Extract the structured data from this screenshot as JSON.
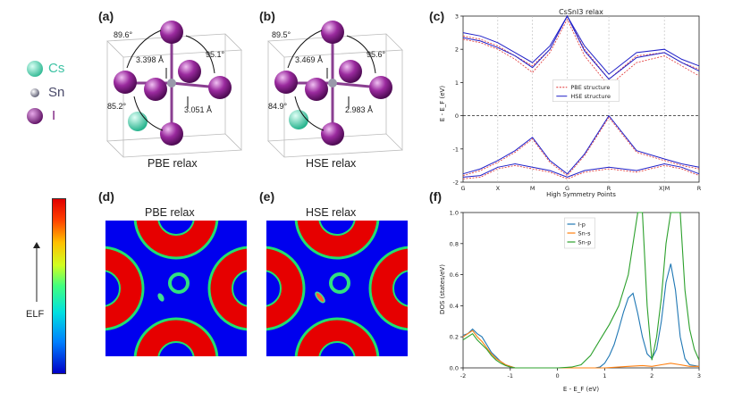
{
  "panel_labels": {
    "a": "(a)",
    "b": "(b)",
    "c": "(c)",
    "d": "(d)",
    "e": "(e)",
    "f": "(f)"
  },
  "atom_legend": [
    {
      "label": "Cs",
      "color": "#3fd7b5",
      "text_color": "#3ec3a4"
    },
    {
      "label": "Sn",
      "color": "#8f8fa0",
      "text_color": "#4a4a6a"
    },
    {
      "label": "I",
      "color": "#8a1f8c",
      "text_color": "#7b1e7e"
    }
  ],
  "structure_a": {
    "caption": "PBE relax",
    "angle_top": "89.6°",
    "angle_right": "95.1°",
    "angle_left": "85.2°",
    "bond_up": "3.398 Å",
    "bond_down": "3.051 Å"
  },
  "structure_b": {
    "caption": "HSE relax",
    "angle_top": "89.5°",
    "angle_right": "95.6°",
    "angle_left": "84.9°",
    "bond_up": "3.469 Å",
    "bond_down": "2.983 Å"
  },
  "elf_d": {
    "title": "PBE relax"
  },
  "elf_e": {
    "title": "HSE relax"
  },
  "elf_colorbar": {
    "label": "ELF",
    "colors": [
      "#0000c8",
      "#0080ff",
      "#00e0e0",
      "#40ff80",
      "#d0ff20",
      "#ffc000",
      "#ff4000",
      "#e00000"
    ]
  },
  "chart_data": [
    {
      "type": "line",
      "title": "CsSnI3 relax",
      "xlabel": "High Symmetry Points",
      "ylabel": "E - E_F (eV)",
      "ylim": [
        -2,
        3
      ],
      "x_ticks": [
        "G",
        "X",
        "M",
        "G",
        "R",
        "X|M",
        "R"
      ],
      "x_tick_positions": [
        0,
        1,
        2,
        3,
        4.2,
        5.8,
        6.8
      ],
      "y_ticks": [
        "-2",
        "-1",
        "0",
        "1",
        "2",
        "3"
      ],
      "legend_position": "center-right",
      "fermi_line": 0,
      "series": [
        {
          "name": "PBE structure",
          "color": "#e03030",
          "dashed": true,
          "bands": [
            {
              "x": [
                0,
                0.5,
                1,
                1.5,
                2,
                2.5,
                3,
                3.5,
                4.2,
                5,
                5.8,
                6.3,
                6.8
              ],
              "y": [
                2.3,
                2.2,
                2.0,
                1.7,
                1.3,
                1.9,
                2.9,
                1.8,
                0.9,
                1.6,
                1.8,
                1.5,
                1.2
              ]
            },
            {
              "x": [
                0,
                0.5,
                1,
                1.5,
                2,
                2.5,
                3,
                3.5,
                4.2,
                5,
                5.8,
                6.3,
                6.8
              ],
              "y": [
                2.4,
                2.3,
                2.1,
                1.8,
                1.5,
                2.0,
                3.0,
                2.0,
                1.1,
                1.8,
                1.9,
                1.6,
                1.4
              ]
            },
            {
              "x": [
                0,
                0.5,
                1,
                1.5,
                2,
                2.5,
                3,
                3.5,
                4.2,
                5,
                5.8,
                6.3,
                6.8
              ],
              "y": [
                -1.8,
                -1.65,
                -1.4,
                -1.1,
                -0.7,
                -1.4,
                -1.8,
                -1.2,
                -0.05,
                -1.1,
                -1.35,
                -1.5,
                -1.6
              ]
            },
            {
              "x": [
                0,
                0.5,
                1,
                1.5,
                2,
                2.5,
                3,
                3.5,
                4.2,
                5,
                5.8,
                6.3,
                6.8
              ],
              "y": [
                -1.9,
                -1.85,
                -1.6,
                -1.5,
                -1.6,
                -1.7,
                -1.9,
                -1.7,
                -1.6,
                -1.7,
                -1.5,
                -1.6,
                -1.8
              ]
            }
          ]
        },
        {
          "name": "HSE structure",
          "color": "#2020c8",
          "dashed": false,
          "bands": [
            {
              "x": [
                0,
                0.5,
                1,
                1.5,
                2,
                2.5,
                3,
                3.5,
                4.2,
                5,
                5.8,
                6.3,
                6.8
              ],
              "y": [
                2.35,
                2.25,
                2.05,
                1.8,
                1.45,
                2.0,
                3.0,
                1.95,
                1.1,
                1.75,
                1.9,
                1.6,
                1.35
              ]
            },
            {
              "x": [
                0,
                0.5,
                1,
                1.5,
                2,
                2.5,
                3,
                3.5,
                4.2,
                5,
                5.8,
                6.3,
                6.8
              ],
              "y": [
                2.5,
                2.4,
                2.2,
                1.9,
                1.6,
                2.1,
                3.0,
                2.1,
                1.25,
                1.9,
                2.0,
                1.7,
                1.5
              ]
            },
            {
              "x": [
                0,
                0.5,
                1,
                1.5,
                2,
                2.5,
                3,
                3.5,
                4.2,
                5,
                5.8,
                6.3,
                6.8
              ],
              "y": [
                -1.75,
                -1.6,
                -1.35,
                -1.05,
                -0.65,
                -1.35,
                -1.75,
                -1.15,
                0.0,
                -1.05,
                -1.3,
                -1.45,
                -1.55
              ]
            },
            {
              "x": [
                0,
                0.5,
                1,
                1.5,
                2,
                2.5,
                3,
                3.5,
                4.2,
                5,
                5.8,
                6.3,
                6.8
              ],
              "y": [
                -1.85,
                -1.8,
                -1.55,
                -1.45,
                -1.55,
                -1.65,
                -1.85,
                -1.65,
                -1.55,
                -1.65,
                -1.45,
                -1.55,
                -1.75
              ]
            }
          ]
        }
      ]
    },
    {
      "type": "line",
      "xlabel": "E - E_F (eV)",
      "ylabel": "DOS (states/eV)",
      "xlim": [
        -2,
        3
      ],
      "ylim": [
        0,
        1.0
      ],
      "x_ticks": [
        "-2",
        "-1",
        "0",
        "1",
        "2",
        "3"
      ],
      "y_ticks": [
        "0.0",
        "0.2",
        "0.4",
        "0.6",
        "0.8",
        "1.0"
      ],
      "legend_position": "top-right",
      "series": [
        {
          "name": "I-p",
          "color": "#1f77b4",
          "x": [
            -2,
            -1.9,
            -1.8,
            -1.7,
            -1.6,
            -1.5,
            -1.4,
            -1.3,
            -1.2,
            -1.1,
            -1.0,
            -0.9,
            -0.8,
            -0.7,
            -0.6,
            -0.5,
            -0.3,
            0.0,
            0.3,
            0.6,
            0.8,
            0.9,
            1.0,
            1.1,
            1.2,
            1.3,
            1.4,
            1.5,
            1.6,
            1.7,
            1.8,
            1.9,
            2.0,
            2.1,
            2.2,
            2.3,
            2.4,
            2.5,
            2.6,
            2.7,
            2.8,
            3.0
          ],
          "y": [
            0.21,
            0.22,
            0.25,
            0.22,
            0.2,
            0.15,
            0.1,
            0.07,
            0.04,
            0.02,
            0.01,
            0.0,
            0.0,
            0.0,
            0.0,
            0.0,
            0.0,
            0.0,
            0.0,
            0.0,
            0.0,
            0.005,
            0.03,
            0.08,
            0.15,
            0.25,
            0.36,
            0.45,
            0.48,
            0.35,
            0.2,
            0.09,
            0.06,
            0.12,
            0.3,
            0.55,
            0.67,
            0.5,
            0.2,
            0.06,
            0.02,
            0.01
          ]
        },
        {
          "name": "Sn-s",
          "color": "#ff7f0e",
          "x": [
            -2,
            -1.9,
            -1.8,
            -1.7,
            -1.6,
            -1.5,
            -1.4,
            -1.3,
            -1.2,
            -1.1,
            -1.0,
            -0.9,
            -0.5,
            0.0,
            0.5,
            1.0,
            1.5,
            1.8,
            2.0,
            2.2,
            2.4,
            2.6,
            2.8,
            3.0
          ],
          "y": [
            0.2,
            0.22,
            0.24,
            0.2,
            0.17,
            0.13,
            0.09,
            0.06,
            0.04,
            0.02,
            0.01,
            0.0,
            0.0,
            0.0,
            0.0,
            0.0,
            0.01,
            0.015,
            0.01,
            0.02,
            0.03,
            0.02,
            0.01,
            0.01
          ]
        },
        {
          "name": "Sn-p",
          "color": "#2ca02c",
          "x": [
            -2,
            -1.9,
            -1.8,
            -1.7,
            -1.6,
            -1.5,
            -1.4,
            -1.3,
            -1.2,
            -1.1,
            -1.0,
            -0.9,
            -0.5,
            0.0,
            0.3,
            0.5,
            0.7,
            0.9,
            1.1,
            1.3,
            1.5,
            1.6,
            1.7,
            1.8,
            1.9,
            2.0,
            2.1,
            2.2,
            2.3,
            2.4,
            2.5,
            2.6,
            2.7,
            2.8,
            2.9,
            3.0
          ],
          "y": [
            0.18,
            0.2,
            0.22,
            0.18,
            0.15,
            0.12,
            0.08,
            0.05,
            0.03,
            0.015,
            0.005,
            0.0,
            0.0,
            0.0,
            0.005,
            0.02,
            0.08,
            0.18,
            0.28,
            0.4,
            0.6,
            0.8,
            1.0,
            1.0,
            0.4,
            0.05,
            0.2,
            0.45,
            0.8,
            1.0,
            1.0,
            1.0,
            0.5,
            0.25,
            0.12,
            0.05
          ]
        }
      ]
    }
  ]
}
